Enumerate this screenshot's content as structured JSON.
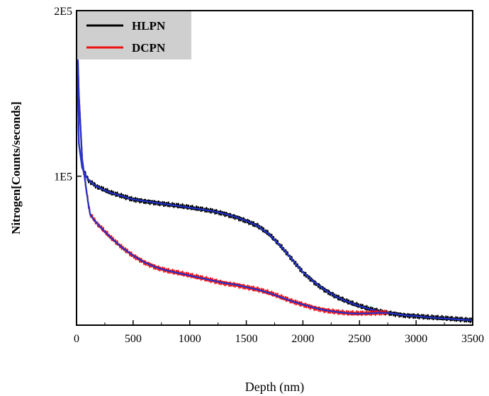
{
  "chart_data": {
    "type": "line",
    "xlabel": "Depth (nm)",
    "ylabel": "Nitrogen[Counts/seconds]",
    "xlim": [
      0,
      3500
    ],
    "ylim": [
      10000,
      200000
    ],
    "x_ticks": [
      0,
      500,
      1000,
      1500,
      2000,
      2500,
      3000,
      3500
    ],
    "x_tick_labels": [
      "0",
      "500",
      "1000",
      "1500",
      "2000",
      "2500",
      "3000",
      "3500"
    ],
    "y_ticks": [
      100000,
      200000
    ],
    "y_tick_labels": [
      "1E5",
      "2E5"
    ],
    "legend_position": "top-left",
    "grid": false,
    "colors": {
      "fit": "#2233cc"
    },
    "series": [
      {
        "name": "HLPN",
        "color": "#000000",
        "x": [
          0,
          20,
          50,
          100,
          150,
          200,
          300,
          400,
          500,
          600,
          700,
          800,
          900,
          1000,
          1100,
          1200,
          1300,
          1400,
          1500,
          1600,
          1700,
          1800,
          1900,
          2000,
          2100,
          2200,
          2300,
          2400,
          2500,
          2600,
          2700,
          2800,
          2900,
          3000,
          3100,
          3200,
          3300,
          3400,
          3500
        ],
        "values": [
          200000,
          120000,
          105000,
          98000,
          95000,
          93000,
          90000,
          88000,
          86000,
          85000,
          84000,
          83000,
          82000,
          81000,
          80000,
          79000,
          77500,
          75500,
          73000,
          70000,
          65000,
          58000,
          50000,
          42000,
          36000,
          31000,
          27000,
          24000,
          21500,
          19500,
          18000,
          17000,
          16000,
          15500,
          14800,
          14300,
          13800,
          13400,
          13000
        ]
      },
      {
        "name": "DCPN",
        "color": "#ee1111",
        "x": [
          0,
          20,
          50,
          100,
          120,
          150,
          200,
          300,
          400,
          500,
          600,
          700,
          800,
          900,
          1000,
          1100,
          1200,
          1300,
          1400,
          1500,
          1600,
          1700,
          1800,
          1900,
          2000,
          2100,
          2200,
          2300,
          2400,
          2500,
          2600,
          2700,
          2750
        ],
        "values": [
          200000,
          150000,
          110000,
          85000,
          77000,
          74000,
          70000,
          63000,
          57000,
          52000,
          48000,
          45000,
          43000,
          41500,
          40000,
          38500,
          37000,
          35500,
          34500,
          33000,
          31500,
          29500,
          27000,
          24500,
          22500,
          20500,
          19000,
          18000,
          17200,
          17000,
          17200,
          17500,
          17500
        ]
      }
    ]
  }
}
